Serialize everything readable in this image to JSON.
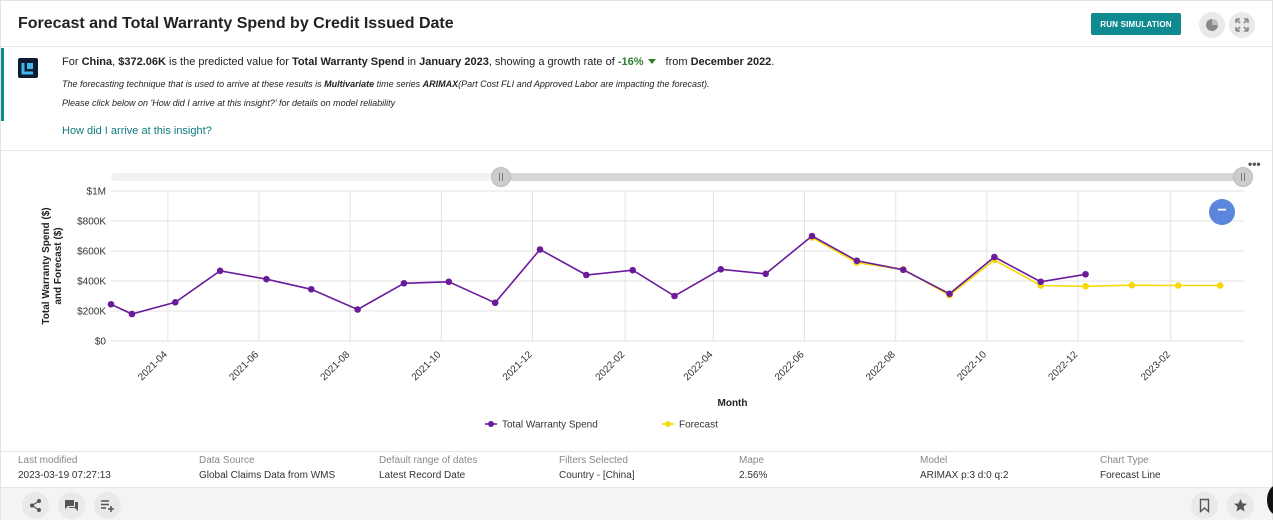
{
  "header": {
    "title": "Forecast and Total Warranty Spend by Credit Issued Date",
    "run_simulation_label": "RUN SIMULATION"
  },
  "insight": {
    "line1": {
      "p1": "For ",
      "country": "China",
      "p2": ", ",
      "value": "$372.06K",
      "p3": " is the predicted value for ",
      "metric": "Total Warranty Spend",
      "p4": " in ",
      "period": "January 2023",
      "p5": ", showing a growth rate of ",
      "rate": "-16%",
      "p6": "from ",
      "prev_period": "December 2022",
      "p7": "."
    },
    "line2": {
      "p1": "The forecasting technique that is used to arrive at these results is ",
      "technique": "Multivariate",
      "p2": " time series ",
      "model": "ARIMAX",
      "p3": "(Part Cost FLI and Approved Labor are impacting the forecast)."
    },
    "line3": "Please click below on 'How did I arrive at this insight?' for details on model reliability",
    "link": "How did I arrive at this insight?"
  },
  "more_label": "•••",
  "zoom_label": "−",
  "chart_data": {
    "type": "line",
    "ylabel_line1": "Total Warranty Spend ($)",
    "ylabel_line2": "and Forecast ($)",
    "xlabel": "Month",
    "ylim": [
      0,
      1000000
    ],
    "y_ticks": [
      {
        "value": 0,
        "label": "$0"
      },
      {
        "value": 200000,
        "label": "$200K"
      },
      {
        "value": 400000,
        "label": "$400K"
      },
      {
        "value": 600000,
        "label": "$600K"
      },
      {
        "value": 800000,
        "label": "$800K"
      },
      {
        "value": 1000000,
        "label": "$1M"
      }
    ],
    "x_ticks": [
      "2021-04",
      "2021-06",
      "2021-08",
      "2021-10",
      "2021-12",
      "2022-02",
      "2022-04",
      "2022-06",
      "2022-08",
      "2022-10",
      "2022-12",
      "2023-02"
    ],
    "legend_position": "bottom",
    "series": [
      {
        "name": "Total Warranty Spend",
        "color": "#6a1b9a",
        "points": [
          [
            "2021-02-22",
            245000
          ],
          [
            "2021-03-08",
            180000
          ],
          [
            "2021-04-06",
            258000
          ],
          [
            "2021-05-06",
            468000
          ],
          [
            "2021-06-06",
            412000
          ],
          [
            "2021-07-06",
            345000
          ],
          [
            "2021-08-06",
            210000
          ],
          [
            "2021-09-06",
            385000
          ],
          [
            "2021-10-06",
            395000
          ],
          [
            "2021-11-06",
            255000
          ],
          [
            "2021-12-06",
            610000
          ],
          [
            "2022-01-06",
            440000
          ],
          [
            "2022-02-06",
            472000
          ],
          [
            "2022-03-06",
            300000
          ],
          [
            "2022-04-06",
            478000
          ],
          [
            "2022-05-06",
            448000
          ],
          [
            "2022-06-06",
            700000
          ],
          [
            "2022-07-06",
            535000
          ],
          [
            "2022-08-06",
            475000
          ],
          [
            "2022-09-06",
            315000
          ],
          [
            "2022-10-06",
            560000
          ],
          [
            "2022-11-06",
            395000
          ],
          [
            "2022-12-06",
            445000
          ]
        ]
      },
      {
        "name": "Forecast",
        "color": "#f5d90a",
        "points": [
          [
            "2022-06-06",
            690000
          ],
          [
            "2022-07-06",
            522000
          ],
          [
            "2022-08-06",
            478000
          ],
          [
            "2022-09-06",
            305000
          ],
          [
            "2022-10-06",
            540000
          ],
          [
            "2022-11-06",
            370000
          ],
          [
            "2022-12-06",
            365000
          ],
          [
            "2023-01-06",
            372060
          ],
          [
            "2023-02-06",
            370000
          ],
          [
            "2023-03-06",
            370000
          ]
        ]
      }
    ]
  },
  "meta": [
    {
      "key": "Last modified",
      "value": "2023-03-19 07:27:13"
    },
    {
      "key": "Data Source",
      "value": "Global Claims Data from WMS"
    },
    {
      "key": "Default range of dates",
      "value": "Latest Record Date"
    },
    {
      "key": "Filters Selected",
      "value": "Country - [China]"
    },
    {
      "key": "Mape",
      "value": "2.56%"
    },
    {
      "key": "Model",
      "value": "ARIMAX p:3 d:0 q:2"
    },
    {
      "key": "Chart Type",
      "value": "Forecast Line"
    }
  ]
}
